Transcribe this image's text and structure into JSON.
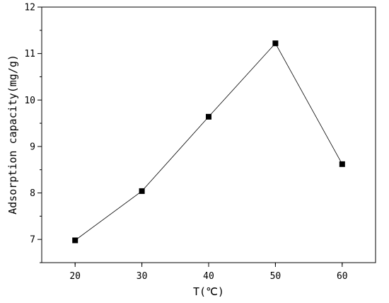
{
  "chart_data": {
    "type": "line",
    "title": "",
    "xlabel": "T(℃)",
    "ylabel": "Adsorption capacity(mg/g)",
    "x": [
      20,
      30,
      40,
      50,
      60
    ],
    "series": [
      {
        "values": [
          6.98,
          8.04,
          9.64,
          11.22,
          8.62
        ]
      }
    ],
    "xlim": [
      15,
      65
    ],
    "ylim": [
      6.5,
      12
    ],
    "xticks": [
      "20",
      "30",
      "40",
      "50",
      "60"
    ],
    "yticks": [
      "7",
      "8",
      "9",
      "10",
      "11",
      "12"
    ],
    "marker": "square",
    "line_color": "#000000",
    "marker_color": "#000000",
    "grid": false,
    "legend": "none"
  }
}
